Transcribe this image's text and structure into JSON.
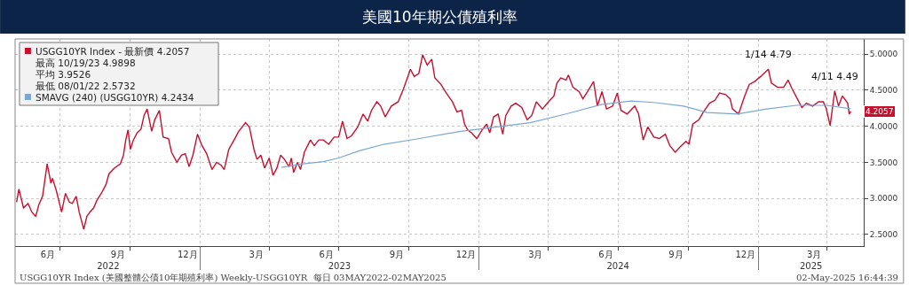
{
  "chart_data": {
    "type": "line",
    "title": "美國10年期公債殖利率",
    "x": [
      "2022-05-05",
      "2022-05-08",
      "2022-05-14",
      "2022-05-20",
      "2022-05-25",
      "2022-05-30",
      "2022-06-03",
      "2022-06-08",
      "2022-06-14",
      "2022-06-19",
      "2022-06-21",
      "2022-06-26",
      "2022-07-03",
      "2022-07-08",
      "2022-07-13",
      "2022-07-17",
      "2022-07-22",
      "2022-07-26",
      "2022-08-01",
      "2022-08-05",
      "2022-08-09",
      "2022-08-14",
      "2022-08-18",
      "2022-08-24",
      "2022-08-30",
      "2022-09-03",
      "2022-09-10",
      "2022-09-18",
      "2022-09-22",
      "2022-09-25",
      "2022-09-28",
      "2022-10-01",
      "2022-10-05",
      "2022-10-10",
      "2022-10-15",
      "2022-10-19",
      "2022-10-23",
      "2022-10-29",
      "2022-11-02",
      "2022-11-08",
      "2022-11-13",
      "2022-11-20",
      "2022-11-24",
      "2022-12-01",
      "2022-12-07",
      "2022-12-12",
      "2022-12-17",
      "2022-12-22",
      "2022-12-28",
      "2023-01-03",
      "2023-01-09",
      "2023-01-16",
      "2023-01-22",
      "2023-01-28",
      "2023-02-01",
      "2023-02-07",
      "2023-02-14",
      "2023-02-20",
      "2023-03-01",
      "2023-03-06",
      "2023-03-12",
      "2023-03-16",
      "2023-03-21",
      "2023-03-26",
      "2023-04-01",
      "2023-04-06",
      "2023-04-11",
      "2023-04-16",
      "2023-04-21",
      "2023-04-27",
      "2023-04-30",
      "2023-05-03",
      "2023-05-08",
      "2023-05-12",
      "2023-05-17",
      "2023-05-25",
      "2023-05-30",
      "2023-06-05",
      "2023-06-11",
      "2023-06-18",
      "2023-06-25",
      "2023-07-01",
      "2023-07-06",
      "2023-07-12",
      "2023-07-18",
      "2023-07-26",
      "2023-08-02",
      "2023-08-08",
      "2023-08-13",
      "2023-08-20",
      "2023-08-25",
      "2023-08-31",
      "2023-09-08",
      "2023-09-17",
      "2023-09-24",
      "2023-10-03",
      "2023-10-08",
      "2023-10-14",
      "2023-10-19",
      "2023-10-25",
      "2023-10-31",
      "2023-11-04",
      "2023-11-12",
      "2023-11-19",
      "2023-11-27",
      "2023-12-03",
      "2023-12-09",
      "2023-12-13",
      "2023-12-17",
      "2023-12-22",
      "2023-12-29",
      "2024-01-05",
      "2024-01-11",
      "2024-01-15",
      "2024-01-20",
      "2024-01-26",
      "2024-02-01",
      "2024-02-05",
      "2024-02-12",
      "2024-02-18",
      "2024-02-26",
      "2024-03-04",
      "2024-03-10",
      "2024-03-16",
      "2024-03-24",
      "2024-04-01",
      "2024-04-08",
      "2024-04-12",
      "2024-04-17",
      "2024-04-24",
      "2024-04-27",
      "2024-05-03",
      "2024-05-11",
      "2024-05-16",
      "2024-05-22",
      "2024-05-30",
      "2024-06-04",
      "2024-06-10",
      "2024-06-16",
      "2024-06-24",
      "2024-06-30",
      "2024-07-05",
      "2024-07-13",
      "2024-07-23",
      "2024-07-28",
      "2024-08-03",
      "2024-08-09",
      "2024-08-17",
      "2024-08-24",
      "2024-09-01",
      "2024-09-07",
      "2024-09-14",
      "2024-09-20",
      "2024-09-28",
      "2024-10-02",
      "2024-10-07",
      "2024-10-15",
      "2024-10-21",
      "2024-10-29",
      "2024-11-05",
      "2024-11-11",
      "2024-11-19",
      "2024-11-25",
      "2024-11-28",
      "2024-12-06",
      "2024-12-14",
      "2024-12-20",
      "2024-12-27",
      "2025-01-04",
      "2025-01-14",
      "2025-01-18",
      "2025-01-26",
      "2025-02-03",
      "2025-02-09",
      "2025-02-14",
      "2025-02-21",
      "2025-02-27",
      "2025-03-05",
      "2025-03-13",
      "2025-03-21",
      "2025-03-27",
      "2025-03-31",
      "2025-04-05",
      "2025-04-11",
      "2025-04-16",
      "2025-04-21",
      "2025-04-28",
      "2025-04-30",
      "2025-05-02"
    ],
    "series": [
      {
        "name": "USGG10YR Index - 最新價 4.2057",
        "color": "#c8102e",
        "values": [
          2.95,
          3.13,
          2.87,
          2.93,
          2.81,
          2.75,
          2.91,
          3.03,
          3.48,
          3.21,
          3.28,
          3.11,
          2.81,
          3.07,
          2.95,
          2.93,
          3.03,
          2.81,
          2.5732,
          2.75,
          2.81,
          2.87,
          2.97,
          3.07,
          3.19,
          3.34,
          3.42,
          3.48,
          3.6,
          3.81,
          3.95,
          3.68,
          3.81,
          3.91,
          3.96,
          4.15,
          4.24,
          3.93,
          4.09,
          4.22,
          3.85,
          3.83,
          3.64,
          3.5,
          3.6,
          3.62,
          3.44,
          3.6,
          3.89,
          3.73,
          3.62,
          3.4,
          3.5,
          3.46,
          3.4,
          3.68,
          3.81,
          3.93,
          4.05,
          3.99,
          3.68,
          3.54,
          3.6,
          3.42,
          3.56,
          3.32,
          3.42,
          3.6,
          3.54,
          3.44,
          3.56,
          3.36,
          3.5,
          3.4,
          3.64,
          3.81,
          3.73,
          3.81,
          3.81,
          3.75,
          3.85,
          3.85,
          4.07,
          3.83,
          3.87,
          3.99,
          4.17,
          4.07,
          4.22,
          4.34,
          4.28,
          4.13,
          4.28,
          4.34,
          4.52,
          4.79,
          4.69,
          4.73,
          4.9898,
          4.85,
          4.93,
          4.67,
          4.58,
          4.46,
          4.34,
          4.2,
          4.22,
          4.03,
          3.95,
          3.91,
          3.83,
          3.95,
          4.03,
          3.91,
          4.13,
          4.17,
          3.89,
          4.15,
          4.28,
          4.32,
          4.26,
          4.09,
          4.15,
          4.34,
          4.24,
          4.34,
          4.42,
          4.6,
          4.67,
          4.64,
          4.71,
          4.54,
          4.48,
          4.38,
          4.48,
          4.62,
          4.28,
          4.48,
          4.24,
          4.28,
          4.46,
          4.22,
          4.17,
          4.28,
          4.17,
          3.81,
          3.99,
          3.85,
          3.83,
          3.89,
          3.73,
          3.64,
          3.71,
          3.79,
          3.75,
          4.03,
          4.09,
          4.2,
          4.32,
          4.36,
          4.46,
          4.44,
          4.38,
          4.24,
          4.17,
          4.42,
          4.58,
          4.62,
          4.69,
          4.79,
          4.6,
          4.54,
          4.54,
          4.64,
          4.52,
          4.38,
          4.26,
          4.32,
          4.28,
          4.34,
          4.34,
          4.24,
          4.01,
          4.49,
          4.28,
          4.42,
          4.32,
          4.17,
          4.2057
        ]
      },
      {
        "name": "SMAVG (240) (USGG10YR) 4.2434",
        "color": "#7ba7d4",
        "x": [
          "2023-04-17",
          "2023-05-15",
          "2023-06-11",
          "2023-07-01",
          "2023-07-28",
          "2023-08-29",
          "2023-10-15",
          "2023-12-08",
          "2024-01-01",
          "2024-03-08",
          "2024-04-24",
          "2024-06-09",
          "2024-07-18",
          "2024-08-17",
          "2024-09-25",
          "2024-10-26",
          "2024-12-04",
          "2025-01-12",
          "2025-02-20",
          "2025-03-31",
          "2025-05-02"
        ],
        "values": [
          3.43,
          3.48,
          3.51,
          3.56,
          3.66,
          3.75,
          3.83,
          3.93,
          3.96,
          4.05,
          4.17,
          4.3,
          4.35,
          4.33,
          4.28,
          4.19,
          4.17,
          4.24,
          4.29,
          4.29,
          4.2434
        ]
      }
    ],
    "xlim": [
      "2022-05-03",
      "2025-05-19"
    ],
    "xticks": [
      {
        "value": "2022-06-15",
        "label": "6月"
      },
      {
        "value": "2022-07-01",
        "label": null
      },
      {
        "value": "2022-09-15",
        "label": "9月"
      },
      {
        "value": "2022-10-01",
        "label": null
      },
      {
        "value": "2022-12-15",
        "label": "12月"
      },
      {
        "value": "2023-01-01",
        "label": null
      },
      {
        "value": "2023-03-15",
        "label": "3月"
      },
      {
        "value": "2023-04-01",
        "label": null
      },
      {
        "value": "2023-06-15",
        "label": "6月"
      },
      {
        "value": "2023-07-01",
        "label": null
      },
      {
        "value": "2023-09-15",
        "label": "9月"
      },
      {
        "value": "2023-10-01",
        "label": null
      },
      {
        "value": "2023-12-15",
        "label": "12月"
      },
      {
        "value": "2024-01-01",
        "label": null
      },
      {
        "value": "2024-03-15",
        "label": "3月"
      },
      {
        "value": "2024-04-01",
        "label": null
      },
      {
        "value": "2024-06-15",
        "label": "6月"
      },
      {
        "value": "2024-07-01",
        "label": null
      },
      {
        "value": "2024-09-15",
        "label": "9月"
      },
      {
        "value": "2024-10-01",
        "label": null
      },
      {
        "value": "2024-12-15",
        "label": "12月"
      },
      {
        "value": "2025-01-01",
        "label": null
      },
      {
        "value": "2025-03-15",
        "label": "3月"
      },
      {
        "value": "2025-04-01",
        "label": null
      }
    ],
    "x2lim": [
      "2022-05-03",
      "2025-05-19"
    ],
    "x2ticks": [
      {
        "value": "2022-09-02",
        "label": "2022"
      },
      {
        "value": "2023-01-01",
        "label": null
      },
      {
        "value": "2023-07-02",
        "label": "2023"
      },
      {
        "value": "2024-01-01",
        "label": null
      },
      {
        "value": "2024-07-01",
        "label": "2024"
      },
      {
        "value": "2025-01-01",
        "label": null
      },
      {
        "value": "2025-03-11",
        "label": "2025"
      }
    ],
    "ylim": [
      2.34,
      5.21
    ],
    "yticks": [
      {
        "value": 2.5,
        "label": "2.5000"
      },
      {
        "value": 3.0,
        "label": "3.0000"
      },
      {
        "value": 3.5,
        "label": "3.5000"
      },
      {
        "value": 4.0,
        "label": "4.0000"
      },
      {
        "value": 4.5,
        "label": "4.5000"
      },
      {
        "value": 5.0,
        "label": "5.0000"
      }
    ],
    "grid": true,
    "legend": "top left",
    "line_style": "solid",
    "marker": "none",
    "annotations": [
      {
        "text": "1/14 4.79",
        "x": "2025-01-14",
        "y": 4.79
      },
      {
        "text": "4/11 4.49",
        "x": "2025-04-11",
        "y": 4.49
      },
      {
        "text": "4.2057",
        "x": "2025-05-02",
        "y": 4.2057
      },
      "最高 10/19/23 4.9898",
      "平均 3.9526",
      "最低 08/01/22 2.5732",
      "USGG10YR Index (美國整體公債10年期殖利率) Weekly-USGG10YR  每日 03MAY2022-02MAY2025",
      "02-May-2025 16:44:39"
    ]
  }
}
